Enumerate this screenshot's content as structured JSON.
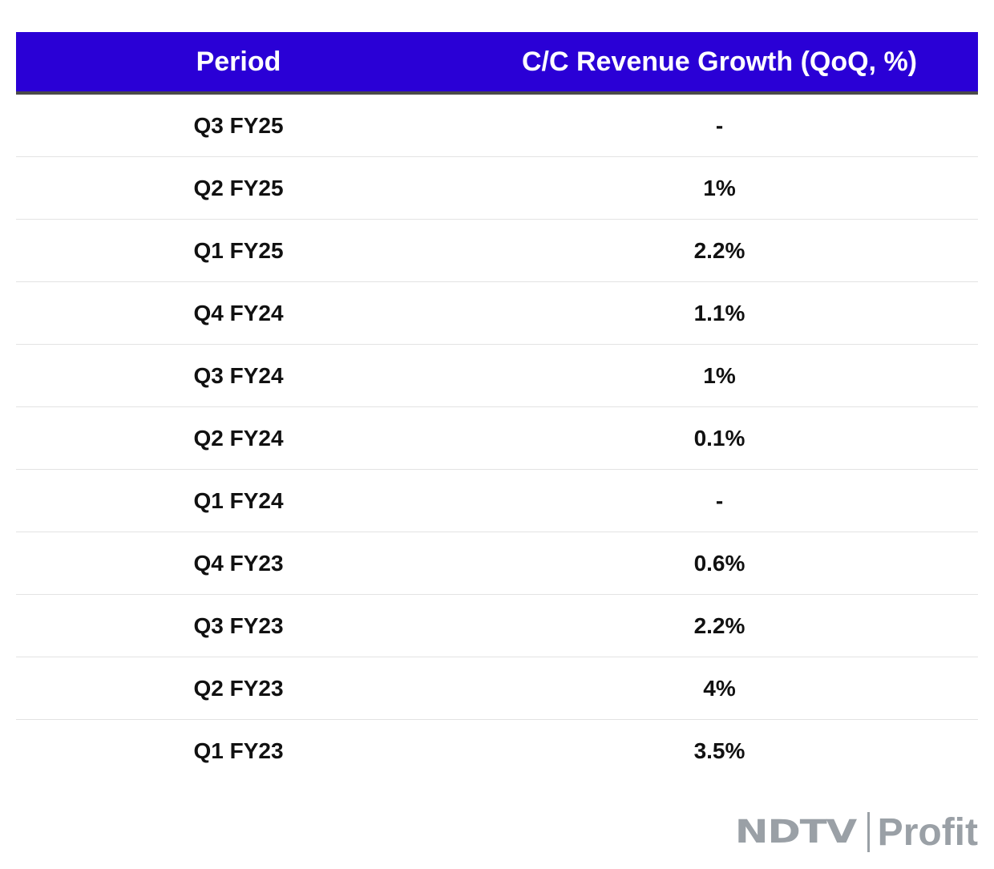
{
  "table": {
    "headers": {
      "period": "Period",
      "growth": "C/C Revenue Growth (QoQ, %)"
    },
    "rows": [
      {
        "period": "Q3 FY25",
        "growth": "-"
      },
      {
        "period": "Q2 FY25",
        "growth": "1%"
      },
      {
        "period": "Q1 FY25",
        "growth": "2.2%"
      },
      {
        "period": "Q4 FY24",
        "growth": "1.1%"
      },
      {
        "period": "Q3 FY24",
        "growth": "1%"
      },
      {
        "period": "Q2 FY24",
        "growth": "0.1%"
      },
      {
        "period": "Q1 FY24",
        "growth": "-"
      },
      {
        "period": "Q4 FY23",
        "growth": "0.6%"
      },
      {
        "period": "Q3 FY23",
        "growth": "2.2%"
      },
      {
        "period": "Q2 FY23",
        "growth": "4%"
      },
      {
        "period": "Q1 FY23",
        "growth": "3.5%"
      }
    ]
  },
  "logo": {
    "brand": "NDTV",
    "product": "Profit"
  },
  "colors": {
    "header_bg": "#2a00d6",
    "header_text": "#ffffff",
    "logo_gray": "#9aa0a6"
  }
}
